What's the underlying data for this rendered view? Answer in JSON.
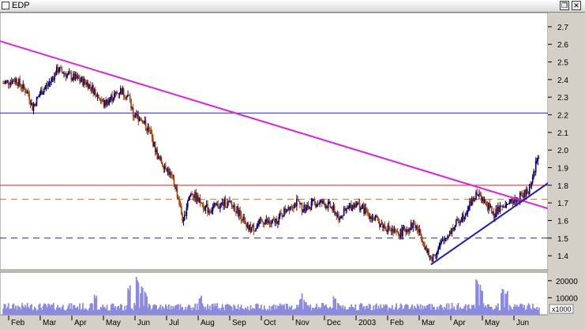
{
  "window": {
    "title": "EDP",
    "restore_symbol": "❐",
    "close_symbol": "✕"
  },
  "chart_data": {
    "type": "candlestick",
    "title": "EDP",
    "y_ticks": [
      "2.7",
      "2.6",
      "2.5",
      "2.4",
      "2.3",
      "2.2",
      "2.1",
      "2.0",
      "1.9",
      "1.8",
      "1.7",
      "1.6",
      "1.5",
      "1.4"
    ],
    "ylim": [
      1.32,
      2.78
    ],
    "volume_ticks": [
      "20000",
      "10000"
    ],
    "volume_unit": "x1000",
    "volume_ylim": [
      0,
      25000
    ],
    "x_labels": [
      "Feb",
      "Mar",
      "Apr",
      "May",
      "Jun",
      "Jul",
      "Aug",
      "Sep",
      "Oct",
      "Nov",
      "Dec",
      "2003",
      "Feb",
      "Mar",
      "Apr",
      "May",
      "Jun"
    ],
    "price_path": [
      [
        0,
        2.38
      ],
      [
        3,
        2.4
      ],
      [
        6,
        2.32
      ],
      [
        7,
        2.24
      ],
      [
        9,
        2.33
      ],
      [
        11,
        2.38
      ],
      [
        13,
        2.46
      ],
      [
        15,
        2.43
      ],
      [
        18,
        2.4
      ],
      [
        20,
        2.38
      ],
      [
        22,
        2.33
      ],
      [
        24,
        2.26
      ],
      [
        26,
        2.3
      ],
      [
        28,
        2.34
      ],
      [
        30,
        2.3
      ],
      [
        31,
        2.2
      ],
      [
        33,
        2.18
      ],
      [
        35,
        2.1
      ],
      [
        37,
        1.95
      ],
      [
        39,
        1.9
      ],
      [
        41,
        1.8
      ],
      [
        42,
        1.7
      ],
      [
        43,
        1.58
      ],
      [
        44,
        1.72
      ],
      [
        45,
        1.76
      ],
      [
        47,
        1.7
      ],
      [
        49,
        1.66
      ],
      [
        51,
        1.68
      ],
      [
        53,
        1.7
      ],
      [
        55,
        1.68
      ],
      [
        57,
        1.62
      ],
      [
        58,
        1.55
      ],
      [
        60,
        1.56
      ],
      [
        62,
        1.6
      ],
      [
        64,
        1.58
      ],
      [
        66,
        1.62
      ],
      [
        68,
        1.68
      ],
      [
        70,
        1.7
      ],
      [
        72,
        1.66
      ],
      [
        74,
        1.7
      ],
      [
        76,
        1.7
      ],
      [
        78,
        1.68
      ],
      [
        80,
        1.62
      ],
      [
        82,
        1.66
      ],
      [
        84,
        1.7
      ],
      [
        86,
        1.66
      ],
      [
        88,
        1.62
      ],
      [
        90,
        1.58
      ],
      [
        92,
        1.55
      ],
      [
        94,
        1.52
      ],
      [
        96,
        1.55
      ],
      [
        98,
        1.58
      ],
      [
        100,
        1.5
      ],
      [
        101,
        1.42
      ],
      [
        102,
        1.38
      ],
      [
        104,
        1.45
      ],
      [
        106,
        1.52
      ],
      [
        108,
        1.58
      ],
      [
        110,
        1.64
      ],
      [
        112,
        1.72
      ],
      [
        113,
        1.75
      ],
      [
        115,
        1.7
      ],
      [
        117,
        1.64
      ],
      [
        119,
        1.67
      ],
      [
        121,
        1.7
      ],
      [
        123,
        1.73
      ],
      [
        125,
        1.76
      ],
      [
        126,
        1.82
      ],
      [
        127,
        1.92
      ],
      [
        128,
        1.98
      ]
    ],
    "period_count": 128,
    "volume_spikes": [
      [
        22,
        14000
      ],
      [
        30,
        18000
      ],
      [
        32,
        24000
      ],
      [
        33,
        19000
      ],
      [
        34,
        16000
      ],
      [
        47,
        13000
      ],
      [
        71,
        15000
      ],
      [
        72,
        12000
      ],
      [
        79,
        12000
      ],
      [
        113,
        22000
      ],
      [
        114,
        18000
      ],
      [
        119,
        16000
      ],
      [
        120,
        14000
      ]
    ],
    "horizontal_lines": [
      {
        "value": 2.21,
        "color": "#2020c0",
        "style": "solid"
      },
      {
        "value": 1.8,
        "color": "#d02020",
        "style": "solid"
      },
      {
        "value": 1.72,
        "color": "#d07020",
        "style": "dashed"
      },
      {
        "value": 1.5,
        "color": "#2020c0",
        "style": "dashed"
      }
    ],
    "trendlines": [
      {
        "from": [
          -1,
          2.62
        ],
        "to": [
          131,
          1.66
        ],
        "color": "#e020e0"
      },
      {
        "from": [
          102,
          1.35
        ],
        "to": [
          131,
          1.83
        ],
        "color": "#1c1cc8"
      }
    ],
    "colors": {
      "up": "#000080",
      "down": "#a04000",
      "volume": "#8a8ae0",
      "background": "#ffffff",
      "panel": "#d4d0c8"
    }
  }
}
